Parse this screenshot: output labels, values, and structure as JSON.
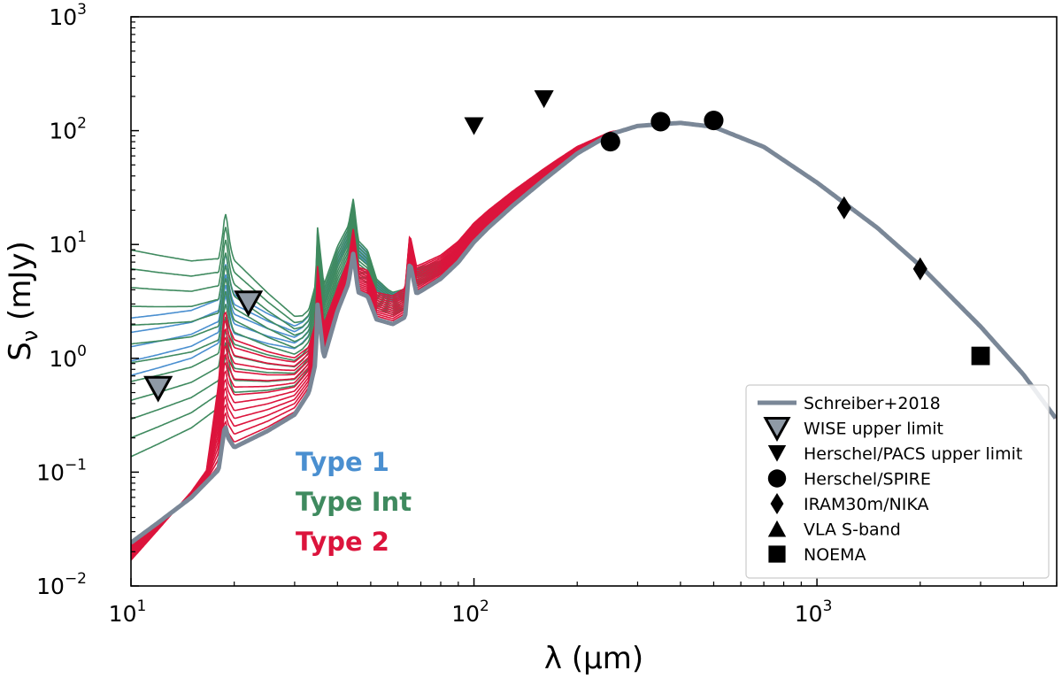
{
  "chart_data": {
    "type": "line",
    "xlabel": "λ (μm)",
    "ylabel": "S_ν (mJy)",
    "xscale": "log",
    "yscale": "log",
    "xlim": [
      10,
      5000
    ],
    "ylim": [
      0.01,
      1000
    ],
    "x_ticks": [
      {
        "value": 10,
        "base": "10",
        "exp": "1"
      },
      {
        "value": 100,
        "base": "10",
        "exp": "2"
      },
      {
        "value": 1000,
        "base": "10",
        "exp": "3"
      }
    ],
    "y_ticks": [
      {
        "value": 0.01,
        "base": "10",
        "exp": "−2"
      },
      {
        "value": 0.1,
        "base": "10",
        "exp": "−1"
      },
      {
        "value": 1,
        "base": "10",
        "exp": "0"
      },
      {
        "value": 10,
        "base": "10",
        "exp": "1"
      },
      {
        "value": 100,
        "base": "10",
        "exp": "2"
      },
      {
        "value": 1000,
        "base": "10",
        "exp": "3"
      }
    ],
    "grid": false,
    "legend_position": "lower-right",
    "model_families": [
      {
        "name": "Type 1",
        "color": "#4a8fd0"
      },
      {
        "name": "Type Int",
        "color": "#3f8a5f"
      },
      {
        "name": "Type 2",
        "color": "#dc143c"
      }
    ],
    "reference_model": {
      "name": "Schreiber+2018",
      "color": "#7a8797",
      "x": [
        10,
        12,
        15,
        18,
        18.8,
        19.2,
        20,
        25,
        30,
        33,
        34.5,
        35,
        36.5,
        40,
        43,
        44.5,
        46,
        49,
        52,
        58,
        63,
        65,
        68,
        72,
        80,
        90,
        100,
        110,
        130,
        160,
        200,
        250,
        300,
        400,
        500,
        700,
        1000,
        1500,
        2000,
        3000,
        4000,
        5000
      ],
      "y": [
        0.024,
        0.036,
        0.06,
        0.105,
        0.26,
        0.2,
        0.165,
        0.23,
        0.32,
        0.5,
        0.9,
        3.0,
        1.0,
        2.6,
        4.5,
        8.4,
        3.8,
        3.5,
        2.2,
        2.0,
        2.3,
        7.0,
        3.7,
        4.1,
        5.0,
        7.0,
        10.5,
        14,
        22,
        37,
        63,
        93,
        110,
        117,
        108,
        72,
        35,
        14,
        6.5,
        1.9,
        0.72,
        0.29
      ]
    },
    "photometry": [
      {
        "name": "WISE upper limit",
        "marker": "triangle-down-open-gray",
        "x": [
          12,
          22
        ],
        "y": [
          0.55,
          3.1
        ]
      },
      {
        "name": "Herschel/PACS upper limit",
        "marker": "triangle-down",
        "x": [
          100,
          160
        ],
        "y": [
          110,
          190
        ]
      },
      {
        "name": "Herschel/SPIRE",
        "marker": "circle",
        "x": [
          250,
          350,
          500
        ],
        "y": [
          80,
          120,
          123
        ]
      },
      {
        "name": "IRAM30m/NIKA",
        "marker": "diamond",
        "x": [
          1200,
          2000
        ],
        "y": [
          21,
          6.1
        ]
      },
      {
        "name": "VLA S-band",
        "marker": "triangle-up",
        "x": [],
        "y": []
      },
      {
        "name": "NOEMA",
        "marker": "square",
        "x": [
          3000
        ],
        "y": [
          1.05
        ]
      }
    ]
  },
  "legend": [
    {
      "label": "Schreiber+2018",
      "marker": "line"
    },
    {
      "label": "WISE upper limit",
      "marker": "triangle-down-open-gray"
    },
    {
      "label": "Herschel/PACS upper limit",
      "marker": "triangle-down"
    },
    {
      "label": "Herschel/SPIRE",
      "marker": "circle"
    },
    {
      "label": "IRAM30m/NIKA",
      "marker": "diamond"
    },
    {
      "label": "VLA S-band",
      "marker": "triangle-up"
    },
    {
      "label": "NOEMA",
      "marker": "square"
    }
  ]
}
